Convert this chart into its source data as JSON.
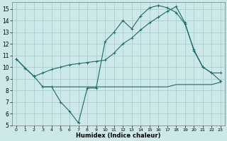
{
  "line1_x": [
    0,
    1,
    2,
    3,
    4,
    5,
    6,
    7,
    8,
    9,
    10,
    11,
    12,
    13,
    14,
    15,
    16,
    17,
    18,
    19,
    20,
    21,
    22,
    23
  ],
  "line1_y": [
    10.7,
    9.9,
    9.2,
    8.3,
    8.3,
    7.0,
    6.2,
    5.2,
    8.2,
    8.2,
    12.2,
    13.0,
    14.0,
    13.3,
    14.4,
    15.1,
    15.3,
    15.1,
    14.7,
    13.7,
    11.5,
    10.0,
    9.5,
    9.5
  ],
  "line2_x": [
    0,
    2,
    3,
    4,
    5,
    6,
    7,
    8,
    9,
    10,
    11,
    12,
    13,
    14,
    15,
    16,
    17,
    18,
    19,
    20,
    21,
    22,
    23
  ],
  "line2_y": [
    10.7,
    9.2,
    9.5,
    9.8,
    10.0,
    10.2,
    10.3,
    10.4,
    10.5,
    10.6,
    11.2,
    12.0,
    12.5,
    13.2,
    13.8,
    14.3,
    14.8,
    15.2,
    13.8,
    11.4,
    10.0,
    9.5,
    8.8
  ],
  "line3_x": [
    3,
    4,
    5,
    6,
    7,
    8,
    9,
    10,
    11,
    12,
    13,
    14,
    15,
    16,
    17,
    18,
    19,
    20,
    21,
    22,
    23
  ],
  "line3_y": [
    8.3,
    8.3,
    8.3,
    8.3,
    8.3,
    8.3,
    8.3,
    8.3,
    8.3,
    8.3,
    8.3,
    8.3,
    8.3,
    8.3,
    8.3,
    8.5,
    8.5,
    8.5,
    8.5,
    8.5,
    8.7
  ],
  "line_color": "#1a6b6b",
  "bg_color": "#cce8e8",
  "grid_color": "#aad0d0",
  "xlabel": "Humidex (Indice chaleur)",
  "xlim": [
    -0.5,
    23.5
  ],
  "ylim": [
    5,
    15.6
  ],
  "yticks": [
    5,
    6,
    7,
    8,
    9,
    10,
    11,
    12,
    13,
    14,
    15
  ],
  "xticks": [
    0,
    1,
    2,
    3,
    4,
    5,
    6,
    7,
    8,
    9,
    10,
    11,
    12,
    13,
    14,
    15,
    16,
    17,
    18,
    19,
    20,
    21,
    22,
    23
  ]
}
